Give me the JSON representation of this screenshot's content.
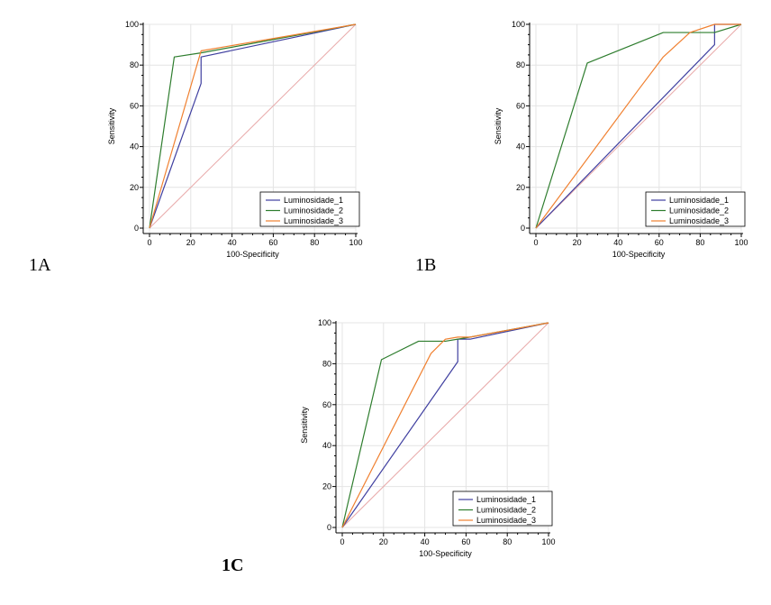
{
  "chart_data": [
    {
      "type": "line",
      "panel_label": "1A",
      "xlabel": "100-Specificity",
      "ylabel": "Sensitivity",
      "xlim": [
        0,
        100
      ],
      "ylim": [
        0,
        100
      ],
      "xticks": [
        0,
        20,
        40,
        60,
        80,
        100
      ],
      "yticks": [
        0,
        20,
        40,
        60,
        80,
        100
      ],
      "grid": true,
      "legend_position": "bottom-right",
      "reference_line": {
        "x": [
          0,
          100
        ],
        "y": [
          0,
          100
        ],
        "color": "#e8a8a8"
      },
      "series": [
        {
          "name": "Luminosidade_1",
          "color": "#4040a0",
          "x": [
            0,
            25,
            25,
            100
          ],
          "y": [
            0,
            71,
            84,
            100
          ]
        },
        {
          "name": "Luminosidade_2",
          "color": "#2e7d2e",
          "x": [
            0,
            12,
            25,
            100
          ],
          "y": [
            0,
            84,
            86,
            100
          ]
        },
        {
          "name": "Luminosidade_3",
          "color": "#f08030",
          "x": [
            0,
            25,
            100
          ],
          "y": [
            0,
            87,
            100
          ]
        }
      ]
    },
    {
      "type": "line",
      "panel_label": "1B",
      "xlabel": "100-Specificity",
      "ylabel": "Sensitivity",
      "xlim": [
        0,
        100
      ],
      "ylim": [
        0,
        100
      ],
      "xticks": [
        0,
        20,
        40,
        60,
        80,
        100
      ],
      "yticks": [
        0,
        20,
        40,
        60,
        80,
        100
      ],
      "grid": true,
      "legend_position": "bottom-right",
      "reference_line": {
        "x": [
          0,
          100
        ],
        "y": [
          0,
          100
        ],
        "color": "#e8a8a8"
      },
      "series": [
        {
          "name": "Luminosidade_1",
          "color": "#4040a0",
          "x": [
            0,
            87,
            87,
            100
          ],
          "y": [
            0,
            90,
            100,
            100
          ]
        },
        {
          "name": "Luminosidade_2",
          "color": "#2e7d2e",
          "x": [
            0,
            25,
            62,
            87,
            100
          ],
          "y": [
            0,
            81,
            96,
            96,
            100
          ]
        },
        {
          "name": "Luminosidade_3",
          "color": "#f08030",
          "x": [
            0,
            50,
            62,
            75,
            87,
            100
          ],
          "y": [
            0,
            68,
            84,
            96,
            100,
            100
          ]
        }
      ]
    },
    {
      "type": "line",
      "panel_label": "1C",
      "xlabel": "100-Specificity",
      "ylabel": "Sensitivity",
      "xlim": [
        0,
        100
      ],
      "ylim": [
        0,
        100
      ],
      "xticks": [
        0,
        20,
        40,
        60,
        80,
        100
      ],
      "yticks": [
        0,
        20,
        40,
        60,
        80,
        100
      ],
      "grid": true,
      "legend_position": "bottom-right",
      "reference_line": {
        "x": [
          0,
          100
        ],
        "y": [
          0,
          100
        ],
        "color": "#e8a8a8"
      },
      "series": [
        {
          "name": "Luminosidade_1",
          "color": "#4040a0",
          "x": [
            0,
            56,
            56,
            62,
            100
          ],
          "y": [
            0,
            81,
            92,
            92,
            100
          ]
        },
        {
          "name": "Luminosidade_2",
          "color": "#2e7d2e",
          "x": [
            0,
            19,
            37,
            50,
            62,
            100
          ],
          "y": [
            0,
            82,
            91,
            91,
            93,
            100
          ]
        },
        {
          "name": "Luminosidade_3",
          "color": "#f08030",
          "x": [
            0,
            43,
            50,
            56,
            62,
            100
          ],
          "y": [
            0,
            85,
            92,
            93,
            93,
            100
          ]
        }
      ]
    }
  ]
}
